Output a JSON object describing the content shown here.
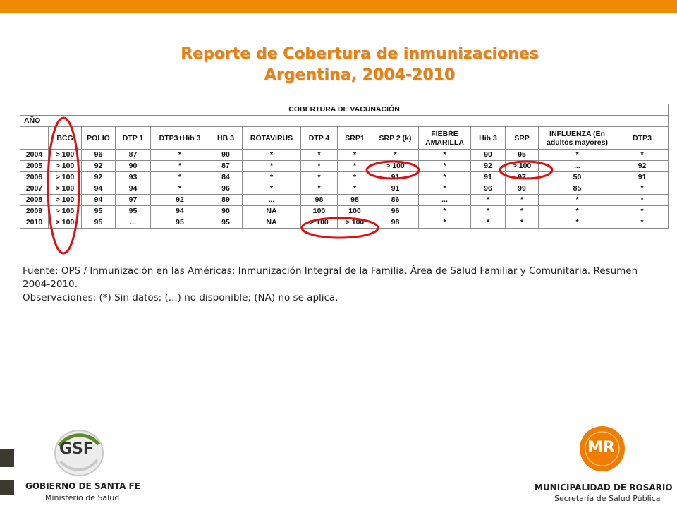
{
  "title": {
    "line1": "Reporte de Cobertura de inmunizaciones",
    "line2": "Argentina, 2004-2010"
  },
  "table": {
    "caption": "COBERTURA DE VACUNACIÓN",
    "year_header": "AÑO",
    "columns": [
      "BCG",
      "POLIO",
      "DTP 1",
      "DTP3+Hib 3",
      "HB 3",
      "ROTAVIRUS",
      "DTP 4",
      "SRP1",
      "SRP 2 (k)",
      "FIEBRE AMARILLA",
      "Hib 3",
      "SRP",
      "INFLUENZA (En adultos mayores)",
      "DTP3"
    ],
    "rows": [
      {
        "year": "2004",
        "values": [
          "> 100",
          "96",
          "87",
          "*",
          "90",
          "*",
          "*",
          "*",
          "*",
          "*",
          "90",
          "95",
          "*",
          "*"
        ]
      },
      {
        "year": "2005",
        "values": [
          "> 100",
          "92",
          "90",
          "*",
          "87",
          "*",
          "*",
          "*",
          "> 100",
          "*",
          "92",
          "> 100",
          "...",
          "92"
        ]
      },
      {
        "year": "2006",
        "values": [
          "> 100",
          "92",
          "93",
          "*",
          "84",
          "*",
          "*",
          "*",
          "91",
          "*",
          "91",
          "97",
          "50",
          "91"
        ]
      },
      {
        "year": "2007",
        "values": [
          "> 100",
          "94",
          "94",
          "*",
          "96",
          "*",
          "*",
          "*",
          "91",
          "*",
          "96",
          "99",
          "85",
          "*"
        ]
      },
      {
        "year": "2008",
        "values": [
          "> 100",
          "94",
          "97",
          "92",
          "89",
          "...",
          "98",
          "98",
          "86",
          "...",
          "*",
          "*",
          "*",
          "*"
        ]
      },
      {
        "year": "2009",
        "values": [
          "> 100",
          "95",
          "95",
          "94",
          "90",
          "NA",
          "100",
          "100",
          "96",
          "*",
          "*",
          "*",
          "*",
          "*"
        ]
      },
      {
        "year": "2010",
        "values": [
          "> 100",
          "95",
          "...",
          "95",
          "95",
          "NA",
          "> 100",
          "> 100",
          "98",
          "*",
          "*",
          "*",
          "*",
          "*"
        ]
      }
    ],
    "highlight_color": "#e01010"
  },
  "notes": {
    "source": "Fuente: OPS / Inmunización en las Américas: Inmunización Integral de la Familia. Área de Salud Familiar y Comunitaria. Resumen 2004-2010.",
    "observations": "Observaciones: (*) Sin datos; (...) no disponible; (NA) no se aplica."
  },
  "footer": {
    "left_logo_mark": "GSF",
    "left_line1": "GOBIERNO DE SANTA FE",
    "left_line2": "Ministerio de Salud",
    "right_logo_mark": "MR",
    "right_line1": "MUNICIPALIDAD DE ROSARIO",
    "right_line2": "Secretaría de Salud Pública"
  },
  "colors": {
    "top_bar": "#f08a00",
    "title": "#e8820c",
    "right_logo_orange": "#f07d00",
    "left_logo_green": "#5a8a2a"
  }
}
